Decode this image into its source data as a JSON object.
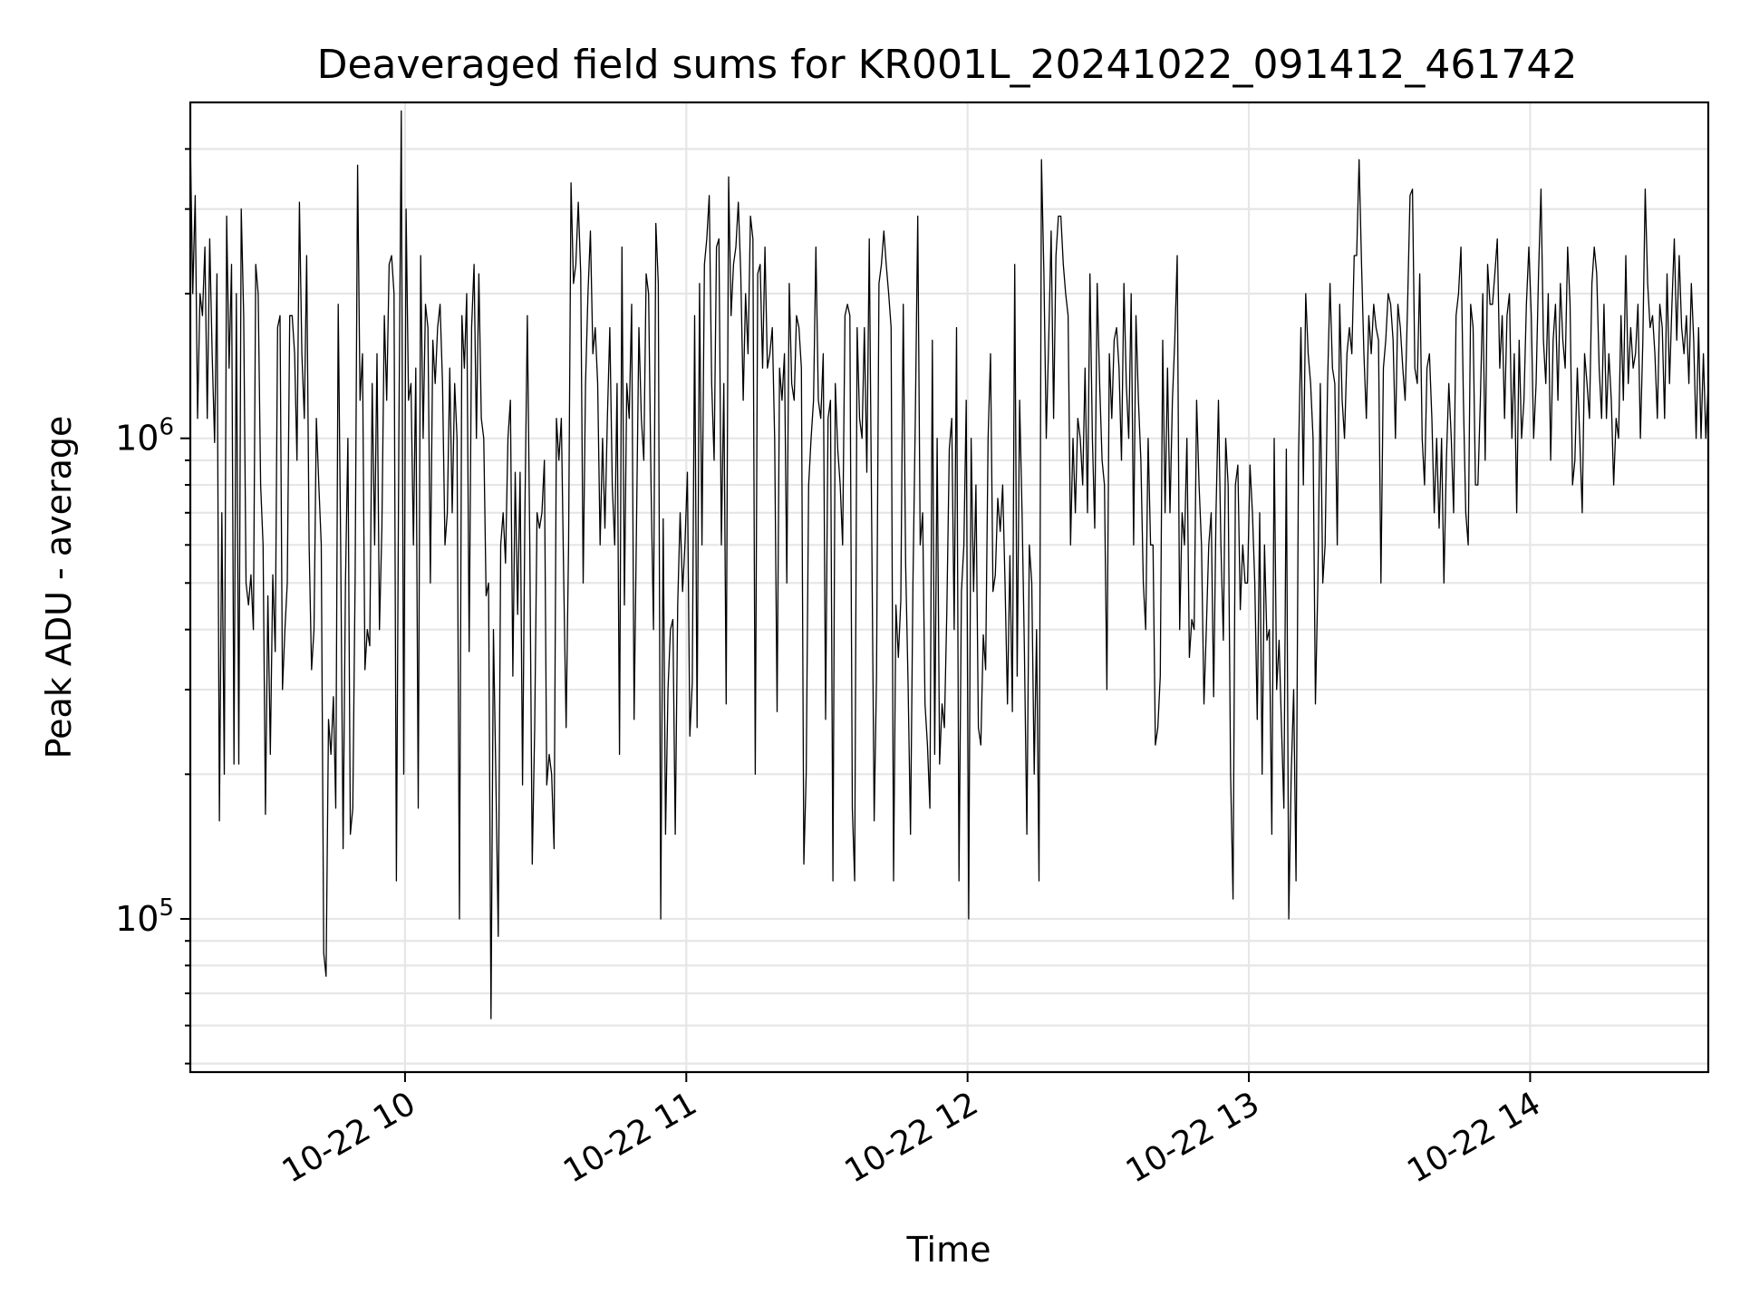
{
  "chart_data": {
    "type": "line",
    "title": "Deaveraged field sums for KR001L_20241022_091412_461742",
    "xlabel": "Time",
    "ylabel": "Peak ADU - average",
    "yscale": "log",
    "xlim": [
      "2024-10-22T09:14:12",
      "2024-10-22T14:38:00"
    ],
    "ylim": [
      48000,
      5000000
    ],
    "xticks": [
      {
        "value": "2024-10-22T10:00:00",
        "label": "10-22 10"
      },
      {
        "value": "2024-10-22T11:00:00",
        "label": "10-22 11"
      },
      {
        "value": "2024-10-22T12:00:00",
        "label": "10-22 12"
      },
      {
        "value": "2024-10-22T13:00:00",
        "label": "10-22 13"
      },
      {
        "value": "2024-10-22T14:00:00",
        "label": "10-22 14"
      }
    ],
    "yticks_major": [
      {
        "value": 100000,
        "base": "10",
        "exp": "5"
      },
      {
        "value": 1000000,
        "base": "10",
        "exp": "6"
      }
    ],
    "yticks_minor": [
      50000,
      60000,
      70000,
      80000,
      90000,
      200000,
      300000,
      400000,
      500000,
      600000,
      700000,
      800000,
      900000,
      2000000,
      3000000,
      4000000
    ],
    "grid": true,
    "series_style": {
      "color": "#000000"
    },
    "series": [
      {
        "x_start": "2024-10-22T09:14:12",
        "x_end": "2024-10-22T14:38:00",
        "values": [
          4200000,
          2000000,
          3200000,
          1100000,
          2000000,
          1800000,
          2500000,
          1100000,
          2600000,
          1500000,
          980000,
          2200000,
          160000,
          700000,
          200000,
          2900000,
          1400000,
          2300000,
          210000,
          2000000,
          210000,
          3000000,
          1800000,
          500000,
          450000,
          520000,
          400000,
          2300000,
          2000000,
          800000,
          600000,
          165000,
          470000,
          220000,
          520000,
          360000,
          1700000,
          1800000,
          300000,
          400000,
          500000,
          1800000,
          1800000,
          1500000,
          900000,
          3100000,
          1500000,
          1100000,
          2400000,
          600000,
          330000,
          400000,
          1100000,
          800000,
          600000,
          85000,
          76000,
          260000,
          220000,
          290000,
          170000,
          1900000,
          600000,
          140000,
          500000,
          1000000,
          150000,
          170000,
          520000,
          3700000,
          1200000,
          1500000,
          330000,
          400000,
          370000,
          1300000,
          600000,
          1500000,
          400000,
          650000,
          1800000,
          1200000,
          2300000,
          2400000,
          2000000,
          120000,
          1000000,
          4800000,
          200000,
          3000000,
          1200000,
          1300000,
          600000,
          1400000,
          170000,
          2400000,
          1000000,
          1900000,
          1700000,
          500000,
          1600000,
          1300000,
          1700000,
          1900000,
          1300000,
          600000,
          700000,
          1400000,
          700000,
          1300000,
          1000000,
          100000,
          1800000,
          1400000,
          2000000,
          360000,
          1700000,
          2300000,
          1000000,
          2200000,
          1100000,
          1000000,
          470000,
          500000,
          62000,
          400000,
          200000,
          92000,
          600000,
          700000,
          550000,
          1000000,
          1200000,
          320000,
          850000,
          430000,
          850000,
          190000,
          700000,
          1800000,
          600000,
          130000,
          250000,
          700000,
          650000,
          700000,
          900000,
          190000,
          220000,
          200000,
          140000,
          1100000,
          900000,
          1100000,
          500000,
          250000,
          600000,
          3400000,
          2100000,
          2300000,
          3100000,
          2200000,
          500000,
          1300000,
          2000000,
          2700000,
          1500000,
          1700000,
          1300000,
          600000,
          1000000,
          650000,
          1100000,
          1700000,
          800000,
          600000,
          1300000,
          220000,
          2500000,
          450000,
          1300000,
          1100000,
          1900000,
          260000,
          650000,
          1700000,
          1100000,
          900000,
          2200000,
          2000000,
          800000,
          400000,
          2800000,
          2100000,
          100000,
          680000,
          150000,
          300000,
          400000,
          420000,
          150000,
          450000,
          700000,
          480000,
          600000,
          850000,
          240000,
          310000,
          1800000,
          250000,
          2100000,
          600000,
          2300000,
          2600000,
          3200000,
          1300000,
          900000,
          2500000,
          2600000,
          600000,
          1300000,
          280000,
          3500000,
          1800000,
          2300000,
          2500000,
          3100000,
          2200000,
          1200000,
          2000000,
          1500000,
          2900000,
          2600000,
          200000,
          2200000,
          2300000,
          1400000,
          2500000,
          1400000,
          1500000,
          1700000,
          1000000,
          270000,
          1400000,
          1200000,
          1500000,
          500000,
          2100000,
          1300000,
          1200000,
          1800000,
          1700000,
          1400000,
          130000,
          200000,
          800000,
          1000000,
          1200000,
          2500000,
          1200000,
          1100000,
          1500000,
          260000,
          1100000,
          1200000,
          120000,
          1300000,
          950000,
          800000,
          600000,
          1800000,
          1900000,
          1800000,
          170000,
          120000,
          1700000,
          1100000,
          1000000,
          1700000,
          850000,
          2600000,
          650000,
          160000,
          320000,
          2100000,
          2300000,
          2700000,
          2300000,
          2000000,
          1700000,
          120000,
          450000,
          350000,
          460000,
          1900000,
          550000,
          310000,
          150000,
          500000,
          1100000,
          2900000,
          600000,
          700000,
          280000,
          230000,
          170000,
          1600000,
          220000,
          1000000,
          210000,
          280000,
          250000,
          440000,
          950000,
          1100000,
          400000,
          1700000,
          120000,
          480000,
          600000,
          1200000,
          100000,
          1000000,
          480000,
          800000,
          250000,
          230000,
          390000,
          330000,
          1000000,
          1500000,
          480000,
          520000,
          750000,
          640000,
          800000,
          500000,
          280000,
          570000,
          270000,
          2300000,
          320000,
          1200000,
          700000,
          360000,
          150000,
          600000,
          500000,
          200000,
          400000,
          120000,
          3800000,
          2200000,
          1000000,
          1600000,
          2700000,
          1100000,
          2400000,
          2900000,
          2900000,
          2300000,
          2000000,
          1800000,
          600000,
          1000000,
          700000,
          1100000,
          1000000,
          800000,
          1400000,
          700000,
          2200000,
          1000000,
          650000,
          2100000,
          1300000,
          900000,
          800000,
          300000,
          1500000,
          1100000,
          1600000,
          1700000,
          1400000,
          900000,
          2100000,
          1300000,
          1000000,
          2000000,
          600000,
          1800000,
          1200000,
          900000,
          500000,
          400000,
          1000000,
          600000,
          600000,
          230000,
          250000,
          320000,
          1600000,
          700000,
          1400000,
          700000,
          1200000,
          1600000,
          2400000,
          400000,
          700000,
          600000,
          1000000,
          350000,
          420000,
          400000,
          1200000,
          800000,
          600000,
          280000,
          400000,
          600000,
          700000,
          290000,
          700000,
          1200000,
          600000,
          380000,
          1000000,
          800000,
          200000,
          110000,
          800000,
          880000,
          440000,
          600000,
          500000,
          500000,
          880000,
          700000,
          500000,
          260000,
          700000,
          200000,
          600000,
          380000,
          400000,
          150000,
          1000000,
          300000,
          380000,
          250000,
          170000,
          950000,
          100000,
          200000,
          300000,
          120000,
          900000,
          1700000,
          800000,
          2000000,
          1500000,
          1300000,
          1000000,
          280000,
          500000,
          1300000,
          500000,
          600000,
          1300000,
          2100000,
          1400000,
          1300000,
          600000,
          1900000,
          1200000,
          1000000,
          1500000,
          1700000,
          1500000,
          2400000,
          2400000,
          3800000,
          2300000,
          1500000,
          1100000,
          1800000,
          1500000,
          1900000,
          1700000,
          1600000,
          500000,
          1400000,
          1600000,
          2000000,
          1900000,
          1600000,
          1000000,
          1900000,
          1700000,
          1400000,
          1200000,
          1900000,
          3200000,
          3300000,
          1400000,
          1300000,
          2200000,
          1000000,
          800000,
          1400000,
          1500000,
          1100000,
          700000,
          1000000,
          650000,
          1000000,
          500000,
          900000,
          1300000,
          1000000,
          700000,
          1800000,
          2000000,
          2500000,
          1200000,
          700000,
          600000,
          1900000,
          1700000,
          800000,
          800000,
          1200000,
          2000000,
          900000,
          2300000,
          1900000,
          1900000,
          2200000,
          2600000,
          1400000,
          1800000,
          1100000,
          1800000,
          2000000,
          1000000,
          1500000,
          700000,
          1600000,
          1000000,
          1200000,
          1900000,
          2500000,
          1800000,
          1000000,
          1300000,
          2200000,
          3300000,
          1600000,
          1300000,
          2000000,
          900000,
          1600000,
          1900000,
          1200000,
          2100000,
          1600000,
          1400000,
          2500000,
          1900000,
          800000,
          900000,
          1400000,
          1000000,
          700000,
          1500000,
          1300000,
          1100000,
          2100000,
          2500000,
          2200000,
          1400000,
          1100000,
          1900000,
          1100000,
          1500000,
          1200000,
          800000,
          1100000,
          1000000,
          1800000,
          1200000,
          2400000,
          1300000,
          1700000,
          1400000,
          1500000,
          1900000,
          1000000,
          1600000,
          3300000,
          2100000,
          1700000,
          1800000,
          1500000,
          1100000,
          1900000,
          1700000,
          1100000,
          2200000,
          1300000,
          1900000,
          2600000,
          1600000,
          2400000,
          1700000,
          1500000,
          1800000,
          1300000,
          2100000,
          1600000,
          1000000,
          1700000,
          1000000,
          1500000,
          1000000,
          1300000
        ]
      }
    ]
  }
}
